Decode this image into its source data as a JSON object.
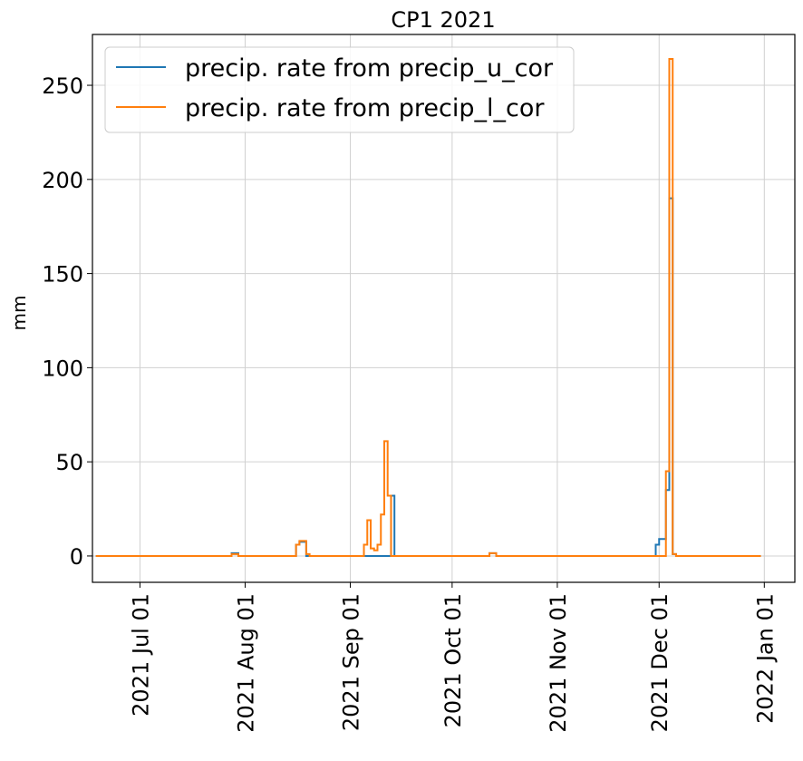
{
  "chart_data": {
    "type": "line",
    "title": "CP1 2021",
    "xlabel": "",
    "ylabel": "mm",
    "x_axis_type": "date",
    "xlim": [
      "2021-06-17",
      "2022-01-10"
    ],
    "ylim": [
      -14,
      277
    ],
    "x_ticks": [
      "2021-07-01",
      "2021-08-01",
      "2021-09-01",
      "2021-10-01",
      "2021-11-01",
      "2021-12-01",
      "2022-01-01"
    ],
    "x_tick_labels": [
      "2021 Jul 01",
      "2021 Aug 01",
      "2021 Sep 01",
      "2021 Oct 01",
      "2021 Nov 01",
      "2021 Dec 01",
      "2022 Jan 01"
    ],
    "y_ticks": [
      0,
      50,
      100,
      150,
      200,
      250
    ],
    "y_tick_labels": [
      "0",
      "50",
      "100",
      "150",
      "200",
      "250"
    ],
    "grid": true,
    "legend_position": "top-left",
    "step": "post",
    "series": [
      {
        "name": "precip. rate from precip_u_cor",
        "color": "#1f77b4",
        "points": [
          [
            "2021-06-18",
            0
          ],
          [
            "2021-07-28",
            0
          ],
          [
            "2021-07-28",
            1.5
          ],
          [
            "2021-07-30",
            1.5
          ],
          [
            "2021-07-30",
            0
          ],
          [
            "2021-08-16",
            0
          ],
          [
            "2021-08-16",
            6
          ],
          [
            "2021-08-17",
            6
          ],
          [
            "2021-08-17",
            7.5
          ],
          [
            "2021-08-19",
            7.5
          ],
          [
            "2021-08-19",
            0
          ],
          [
            "2021-09-05",
            0
          ],
          [
            "2021-09-13",
            0
          ],
          [
            "2021-09-13",
            32
          ],
          [
            "2021-09-14",
            32
          ],
          [
            "2021-09-14",
            0
          ],
          [
            "2021-10-12",
            0
          ],
          [
            "2021-10-12",
            1.5
          ],
          [
            "2021-10-14",
            1.5
          ],
          [
            "2021-10-14",
            0
          ],
          [
            "2021-11-30",
            0
          ],
          [
            "2021-11-30",
            6
          ],
          [
            "2021-12-01",
            6
          ],
          [
            "2021-12-01",
            9
          ],
          [
            "2021-12-03",
            9
          ],
          [
            "2021-12-03",
            35
          ],
          [
            "2021-12-04",
            35
          ],
          [
            "2021-12-04",
            190
          ],
          [
            "2021-12-05",
            190
          ],
          [
            "2021-12-05",
            1
          ],
          [
            "2021-12-06",
            1
          ],
          [
            "2021-12-06",
            0
          ],
          [
            "2021-12-31",
            0
          ]
        ]
      },
      {
        "name": "precip. rate from precip_l_cor",
        "color": "#ff7f0e",
        "points": [
          [
            "2021-06-18",
            0
          ],
          [
            "2021-07-28",
            0
          ],
          [
            "2021-07-28",
            1
          ],
          [
            "2021-07-30",
            1
          ],
          [
            "2021-07-30",
            0
          ],
          [
            "2021-08-16",
            0
          ],
          [
            "2021-08-16",
            6
          ],
          [
            "2021-08-17",
            6
          ],
          [
            "2021-08-17",
            8
          ],
          [
            "2021-08-19",
            8
          ],
          [
            "2021-08-19",
            1
          ],
          [
            "2021-08-20",
            1
          ],
          [
            "2021-08-20",
            0
          ],
          [
            "2021-09-05",
            0
          ],
          [
            "2021-09-05",
            6
          ],
          [
            "2021-09-06",
            6
          ],
          [
            "2021-09-06",
            19
          ],
          [
            "2021-09-07",
            19
          ],
          [
            "2021-09-07",
            4
          ],
          [
            "2021-09-08",
            4
          ],
          [
            "2021-09-08",
            3
          ],
          [
            "2021-09-09",
            3
          ],
          [
            "2021-09-09",
            6
          ],
          [
            "2021-09-10",
            6
          ],
          [
            "2021-09-10",
            22
          ],
          [
            "2021-09-11",
            22
          ],
          [
            "2021-09-11",
            61
          ],
          [
            "2021-09-12",
            61
          ],
          [
            "2021-09-12",
            32
          ],
          [
            "2021-09-13",
            32
          ],
          [
            "2021-09-13",
            0
          ],
          [
            "2021-10-12",
            0
          ],
          [
            "2021-10-12",
            1.5
          ],
          [
            "2021-10-14",
            1.5
          ],
          [
            "2021-10-14",
            0
          ],
          [
            "2021-12-03",
            0
          ],
          [
            "2021-12-03",
            45
          ],
          [
            "2021-12-04",
            45
          ],
          [
            "2021-12-04",
            264
          ],
          [
            "2021-12-05",
            264
          ],
          [
            "2021-12-05",
            1
          ],
          [
            "2021-12-06",
            1
          ],
          [
            "2021-12-06",
            0
          ],
          [
            "2021-12-31",
            0
          ]
        ]
      }
    ]
  }
}
